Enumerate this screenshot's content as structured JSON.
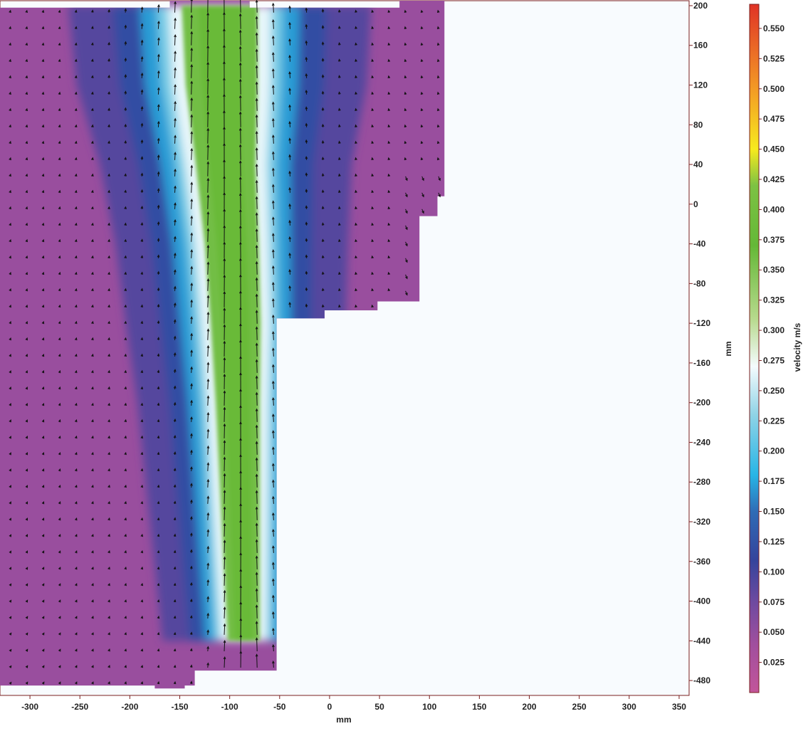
{
  "chart_data": {
    "type": "heatmap",
    "subtype": "velocity-vector-field",
    "xlabel": "mm",
    "ylabel": "mm",
    "colorbar_label": "velocity m/s",
    "xlim": [
      -330,
      360
    ],
    "ylim": [
      -495,
      205
    ],
    "x_ticks": [
      -300,
      -250,
      -200,
      -150,
      -100,
      -50,
      0,
      50,
      100,
      150,
      200,
      250,
      300,
      350
    ],
    "y_ticks": [
      200,
      160,
      120,
      80,
      40,
      0,
      -40,
      -80,
      -120,
      -160,
      -200,
      -240,
      -280,
      -320,
      -360,
      -400,
      -440,
      -480
    ],
    "y_axis_side": "right",
    "colorbar_ticks": [
      0.025,
      0.05,
      0.075,
      0.1,
      0.125,
      0.15,
      0.175,
      0.2,
      0.225,
      0.25,
      0.275,
      0.3,
      0.325,
      0.35,
      0.375,
      0.4,
      0.425,
      0.45,
      0.475,
      0.5,
      0.525,
      0.55
    ],
    "colorbar_range": [
      0,
      0.57
    ],
    "colorbar_stops": [
      {
        "value": 0.0,
        "color": "#c2559a"
      },
      {
        "value": 0.04,
        "color": "#a04f9e"
      },
      {
        "value": 0.075,
        "color": "#6e4aa0"
      },
      {
        "value": 0.11,
        "color": "#34449c"
      },
      {
        "value": 0.15,
        "color": "#2f6cb6"
      },
      {
        "value": 0.18,
        "color": "#27b5e6"
      },
      {
        "value": 0.23,
        "color": "#8fd3e6"
      },
      {
        "value": 0.27,
        "color": "#f4fbfd"
      },
      {
        "value": 0.31,
        "color": "#b6d98c"
      },
      {
        "value": 0.37,
        "color": "#64b837"
      },
      {
        "value": 0.42,
        "color": "#7dc243"
      },
      {
        "value": 0.45,
        "color": "#f7ea1e"
      },
      {
        "value": 0.5,
        "color": "#f39a25"
      },
      {
        "value": 0.57,
        "color": "#e03326"
      }
    ],
    "domain_outline_mm": [
      [
        -330,
        198
      ],
      [
        -160,
        198
      ],
      [
        -160,
        205
      ],
      [
        -80,
        205
      ],
      [
        -80,
        198
      ],
      [
        70,
        198
      ],
      [
        70,
        205
      ],
      [
        115,
        205
      ],
      [
        115,
        8
      ],
      [
        108,
        8
      ],
      [
        108,
        -12
      ],
      [
        90,
        -12
      ],
      [
        90,
        -98
      ],
      [
        48,
        -98
      ],
      [
        48,
        -107
      ],
      [
        -5,
        -107
      ],
      [
        -5,
        -115
      ],
      [
        -53,
        -115
      ],
      [
        -53,
        -470
      ],
      [
        -135,
        -470
      ],
      [
        -135,
        -485
      ],
      [
        -145,
        -485
      ],
      [
        -145,
        -488
      ],
      [
        -175,
        -488
      ],
      [
        -175,
        -485
      ],
      [
        -330,
        -485
      ]
    ],
    "jet_centerline_mm": [
      [
        -110,
        200
      ],
      [
        -108,
        120
      ],
      [
        -104,
        40
      ],
      [
        -98,
        -40
      ],
      [
        -94,
        -120
      ],
      [
        -92,
        -200
      ],
      [
        -90,
        -280
      ],
      [
        -88,
        -360
      ],
      [
        -86,
        -440
      ]
    ],
    "jet_half_width_mm": [
      [
        200,
        38
      ],
      [
        120,
        36
      ],
      [
        40,
        30
      ],
      [
        -40,
        27
      ],
      [
        -120,
        25
      ],
      [
        -200,
        22
      ],
      [
        -280,
        20
      ],
      [
        -360,
        18
      ],
      [
        -440,
        16
      ]
    ],
    "vector_grid": {
      "x_start": -320,
      "x_step": 16.5,
      "y_start": 193,
      "y_step": 16.5
    }
  }
}
